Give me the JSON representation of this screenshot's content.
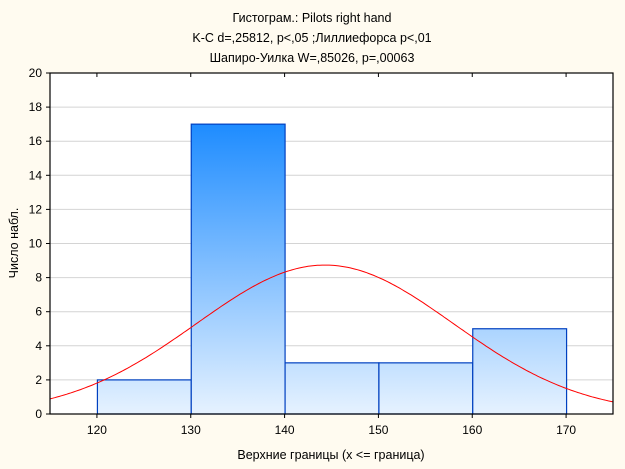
{
  "chart_data": {
    "type": "bar",
    "title_lines": [
      "Гистограм.: Pilots right hand",
      "K-C d=,25812, p<,05 ;Лиллиефорса p<,01",
      "Шапиро-Уилка W=,85026, p=,00063"
    ],
    "xlabel": "Верхние границы (x <= граница)",
    "ylabel": "Число набл.",
    "xlim": [
      115,
      175
    ],
    "ylim": [
      0,
      20
    ],
    "x_ticks": [
      120,
      130,
      140,
      150,
      160,
      170
    ],
    "y_ticks": [
      0,
      2,
      4,
      6,
      8,
      10,
      12,
      14,
      16,
      18,
      20
    ],
    "bins": [
      {
        "from": 120,
        "to": 130,
        "count": 2
      },
      {
        "from": 130,
        "to": 140,
        "count": 17
      },
      {
        "from": 140,
        "to": 150,
        "count": 3
      },
      {
        "from": 150,
        "to": 160,
        "count": 3
      },
      {
        "from": 160,
        "to": 170,
        "count": 5
      }
    ],
    "normal_fit": {
      "mean": 144.3,
      "sd": 13.7,
      "n": 30,
      "bin_width": 10
    },
    "grid": true,
    "colors": {
      "bar_top": "#1e8cff",
      "bar_bottom": "#e6f2ff",
      "bar_edge": "#0040c0",
      "curve": "#ff0000",
      "grid": "#d4d4d4",
      "background": "#fffbf0"
    }
  }
}
